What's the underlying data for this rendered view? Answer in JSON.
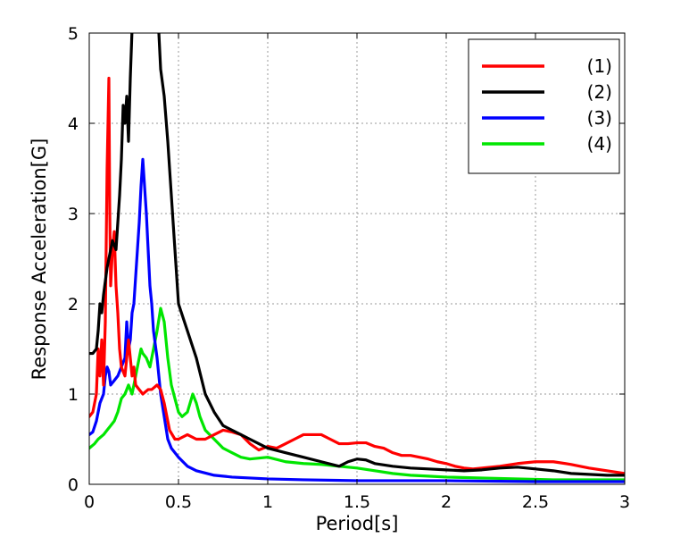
{
  "chart_data": {
    "type": "line",
    "title": "",
    "xlabel": "Period[s]",
    "ylabel": "Response Acceleration[G]",
    "xlim": [
      0,
      3
    ],
    "ylim": [
      0,
      5
    ],
    "xticks": [
      0,
      0.5,
      1,
      1.5,
      2,
      2.5,
      3
    ],
    "xtick_labels": [
      "0",
      "0.5",
      "1",
      "1.5",
      "2",
      "2.5",
      "3"
    ],
    "yticks": [
      0,
      1,
      2,
      3,
      4,
      5
    ],
    "ytick_labels": [
      "0",
      "1",
      "2",
      "3",
      "4",
      "5"
    ],
    "grid": true,
    "legend_position": "top-right",
    "series": [
      {
        "name": "(1)",
        "color": "#ff0000",
        "points": [
          [
            0,
            0.75
          ],
          [
            0.02,
            0.8
          ],
          [
            0.04,
            1.0
          ],
          [
            0.05,
            1.5
          ],
          [
            0.06,
            1.2
          ],
          [
            0.07,
            1.6
          ],
          [
            0.08,
            1.1
          ],
          [
            0.09,
            1.8
          ],
          [
            0.1,
            3.5
          ],
          [
            0.11,
            4.5
          ],
          [
            0.115,
            3.0
          ],
          [
            0.12,
            2.2
          ],
          [
            0.13,
            2.6
          ],
          [
            0.14,
            2.8
          ],
          [
            0.15,
            2.2
          ],
          [
            0.16,
            1.9
          ],
          [
            0.17,
            1.5
          ],
          [
            0.18,
            1.3
          ],
          [
            0.2,
            1.2
          ],
          [
            0.22,
            1.6
          ],
          [
            0.24,
            1.2
          ],
          [
            0.25,
            1.3
          ],
          [
            0.26,
            1.1
          ],
          [
            0.28,
            1.05
          ],
          [
            0.3,
            1.0
          ],
          [
            0.33,
            1.05
          ],
          [
            0.35,
            1.05
          ],
          [
            0.38,
            1.1
          ],
          [
            0.4,
            1.05
          ],
          [
            0.42,
            0.9
          ],
          [
            0.45,
            0.6
          ],
          [
            0.48,
            0.5
          ],
          [
            0.5,
            0.5
          ],
          [
            0.55,
            0.55
          ],
          [
            0.6,
            0.5
          ],
          [
            0.65,
            0.5
          ],
          [
            0.7,
            0.55
          ],
          [
            0.75,
            0.6
          ],
          [
            0.8,
            0.58
          ],
          [
            0.85,
            0.55
          ],
          [
            0.9,
            0.45
          ],
          [
            0.95,
            0.38
          ],
          [
            1.0,
            0.42
          ],
          [
            1.05,
            0.4
          ],
          [
            1.1,
            0.45
          ],
          [
            1.15,
            0.5
          ],
          [
            1.2,
            0.55
          ],
          [
            1.25,
            0.55
          ],
          [
            1.3,
            0.55
          ],
          [
            1.35,
            0.5
          ],
          [
            1.4,
            0.45
          ],
          [
            1.45,
            0.45
          ],
          [
            1.5,
            0.46
          ],
          [
            1.55,
            0.46
          ],
          [
            1.6,
            0.42
          ],
          [
            1.65,
            0.4
          ],
          [
            1.7,
            0.35
          ],
          [
            1.75,
            0.32
          ],
          [
            1.8,
            0.32
          ],
          [
            1.85,
            0.3
          ],
          [
            1.9,
            0.28
          ],
          [
            1.95,
            0.25
          ],
          [
            2.0,
            0.23
          ],
          [
            2.05,
            0.2
          ],
          [
            2.1,
            0.18
          ],
          [
            2.15,
            0.17
          ],
          [
            2.2,
            0.18
          ],
          [
            2.3,
            0.2
          ],
          [
            2.4,
            0.23
          ],
          [
            2.5,
            0.25
          ],
          [
            2.6,
            0.25
          ],
          [
            2.7,
            0.22
          ],
          [
            2.8,
            0.18
          ],
          [
            2.9,
            0.15
          ],
          [
            3.0,
            0.12
          ]
        ]
      },
      {
        "name": "(2)",
        "color": "#000000",
        "points": [
          [
            0,
            1.45
          ],
          [
            0.02,
            1.45
          ],
          [
            0.04,
            1.5
          ],
          [
            0.05,
            1.7
          ],
          [
            0.06,
            2.0
          ],
          [
            0.07,
            1.9
          ],
          [
            0.08,
            2.1
          ],
          [
            0.1,
            2.4
          ],
          [
            0.12,
            2.6
          ],
          [
            0.13,
            2.7
          ],
          [
            0.15,
            2.6
          ],
          [
            0.17,
            3.2
          ],
          [
            0.18,
            3.6
          ],
          [
            0.19,
            4.2
          ],
          [
            0.2,
            4.0
          ],
          [
            0.21,
            4.3
          ],
          [
            0.22,
            3.8
          ],
          [
            0.23,
            4.5
          ],
          [
            0.24,
            5.05
          ],
          [
            0.26,
            5.5
          ],
          [
            0.3,
            6.0
          ],
          [
            0.35,
            6.0
          ],
          [
            0.38,
            5.2
          ],
          [
            0.39,
            5.0
          ],
          [
            0.4,
            4.6
          ],
          [
            0.42,
            4.3
          ],
          [
            0.44,
            3.8
          ],
          [
            0.46,
            3.2
          ],
          [
            0.48,
            2.6
          ],
          [
            0.5,
            2.0
          ],
          [
            0.55,
            1.7
          ],
          [
            0.6,
            1.4
          ],
          [
            0.65,
            1.0
          ],
          [
            0.7,
            0.8
          ],
          [
            0.75,
            0.65
          ],
          [
            0.8,
            0.6
          ],
          [
            0.85,
            0.55
          ],
          [
            0.9,
            0.5
          ],
          [
            0.95,
            0.45
          ],
          [
            1.0,
            0.4
          ],
          [
            1.1,
            0.35
          ],
          [
            1.2,
            0.3
          ],
          [
            1.3,
            0.25
          ],
          [
            1.4,
            0.2
          ],
          [
            1.45,
            0.25
          ],
          [
            1.5,
            0.28
          ],
          [
            1.55,
            0.27
          ],
          [
            1.6,
            0.23
          ],
          [
            1.7,
            0.2
          ],
          [
            1.8,
            0.18
          ],
          [
            1.9,
            0.17
          ],
          [
            2.0,
            0.16
          ],
          [
            2.1,
            0.15
          ],
          [
            2.2,
            0.16
          ],
          [
            2.3,
            0.18
          ],
          [
            2.4,
            0.19
          ],
          [
            2.5,
            0.17
          ],
          [
            2.6,
            0.15
          ],
          [
            2.7,
            0.12
          ],
          [
            2.8,
            0.11
          ],
          [
            2.9,
            0.1
          ],
          [
            3.0,
            0.1
          ]
        ]
      },
      {
        "name": "(3)",
        "color": "#0000ff",
        "points": [
          [
            0,
            0.55
          ],
          [
            0.02,
            0.58
          ],
          [
            0.04,
            0.7
          ],
          [
            0.06,
            0.9
          ],
          [
            0.08,
            1.0
          ],
          [
            0.09,
            1.2
          ],
          [
            0.1,
            1.3
          ],
          [
            0.11,
            1.25
          ],
          [
            0.12,
            1.1
          ],
          [
            0.14,
            1.15
          ],
          [
            0.16,
            1.2
          ],
          [
            0.18,
            1.3
          ],
          [
            0.2,
            1.4
          ],
          [
            0.21,
            1.8
          ],
          [
            0.22,
            1.5
          ],
          [
            0.23,
            1.6
          ],
          [
            0.24,
            1.9
          ],
          [
            0.25,
            2.0
          ],
          [
            0.26,
            2.3
          ],
          [
            0.27,
            2.6
          ],
          [
            0.28,
            2.9
          ],
          [
            0.29,
            3.3
          ],
          [
            0.3,
            3.6
          ],
          [
            0.31,
            3.3
          ],
          [
            0.32,
            3.0
          ],
          [
            0.33,
            2.6
          ],
          [
            0.34,
            2.2
          ],
          [
            0.35,
            2.0
          ],
          [
            0.36,
            1.7
          ],
          [
            0.38,
            1.4
          ],
          [
            0.4,
            1.0
          ],
          [
            0.42,
            0.75
          ],
          [
            0.44,
            0.5
          ],
          [
            0.46,
            0.4
          ],
          [
            0.5,
            0.3
          ],
          [
            0.55,
            0.2
          ],
          [
            0.6,
            0.15
          ],
          [
            0.7,
            0.1
          ],
          [
            0.8,
            0.08
          ],
          [
            1.0,
            0.06
          ],
          [
            1.2,
            0.05
          ],
          [
            1.5,
            0.04
          ],
          [
            2.0,
            0.04
          ],
          [
            2.5,
            0.03
          ],
          [
            3.0,
            0.03
          ]
        ]
      },
      {
        "name": "(4)",
        "color": "#00e600",
        "points": [
          [
            0,
            0.4
          ],
          [
            0.03,
            0.45
          ],
          [
            0.05,
            0.5
          ],
          [
            0.08,
            0.55
          ],
          [
            0.1,
            0.6
          ],
          [
            0.12,
            0.65
          ],
          [
            0.14,
            0.7
          ],
          [
            0.16,
            0.8
          ],
          [
            0.18,
            0.95
          ],
          [
            0.2,
            1.0
          ],
          [
            0.22,
            1.1
          ],
          [
            0.24,
            1.0
          ],
          [
            0.26,
            1.2
          ],
          [
            0.28,
            1.4
          ],
          [
            0.29,
            1.5
          ],
          [
            0.3,
            1.45
          ],
          [
            0.32,
            1.4
          ],
          [
            0.34,
            1.3
          ],
          [
            0.36,
            1.5
          ],
          [
            0.38,
            1.7
          ],
          [
            0.4,
            1.95
          ],
          [
            0.42,
            1.8
          ],
          [
            0.44,
            1.4
          ],
          [
            0.46,
            1.1
          ],
          [
            0.48,
            0.95
          ],
          [
            0.5,
            0.8
          ],
          [
            0.52,
            0.75
          ],
          [
            0.55,
            0.8
          ],
          [
            0.58,
            1.0
          ],
          [
            0.6,
            0.9
          ],
          [
            0.62,
            0.75
          ],
          [
            0.65,
            0.6
          ],
          [
            0.7,
            0.5
          ],
          [
            0.75,
            0.4
          ],
          [
            0.8,
            0.35
          ],
          [
            0.85,
            0.3
          ],
          [
            0.9,
            0.28
          ],
          [
            1.0,
            0.3
          ],
          [
            1.1,
            0.25
          ],
          [
            1.2,
            0.23
          ],
          [
            1.3,
            0.22
          ],
          [
            1.4,
            0.2
          ],
          [
            1.5,
            0.18
          ],
          [
            1.6,
            0.15
          ],
          [
            1.7,
            0.12
          ],
          [
            1.8,
            0.1
          ],
          [
            1.9,
            0.09
          ],
          [
            2.0,
            0.08
          ],
          [
            2.2,
            0.07
          ],
          [
            2.4,
            0.06
          ],
          [
            2.6,
            0.05
          ],
          [
            2.8,
            0.05
          ],
          [
            3.0,
            0.05
          ]
        ]
      }
    ]
  }
}
